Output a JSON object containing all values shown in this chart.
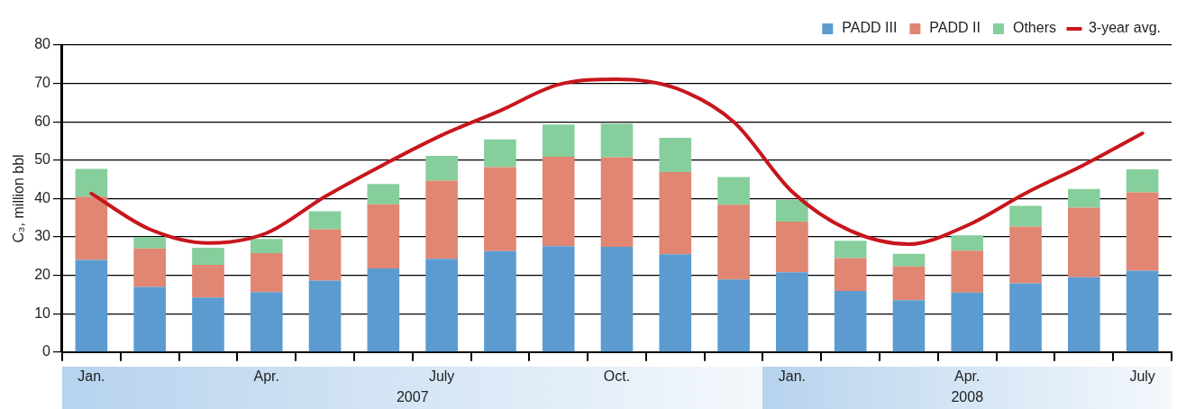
{
  "chart_data": {
    "type": "bar",
    "stacked": true,
    "ylabel": "C₃, million bbl",
    "categories": [
      "Jan.",
      null,
      null,
      "Apr.",
      null,
      null,
      "July",
      null,
      null,
      "Oct.",
      null,
      null,
      "Jan.",
      null,
      null,
      "Apr.",
      null,
      null,
      "July"
    ],
    "series": [
      {
        "name": "PADD III",
        "color": "#5b9bd0",
        "values": [
          24,
          17,
          14.2,
          15.6,
          18.6,
          21.8,
          24.3,
          26.3,
          27.6,
          27.4,
          25.5,
          18.9,
          20.8,
          15.9,
          13.5,
          15.5,
          17.9,
          19.5,
          21.2
        ]
      },
      {
        "name": "PADD II",
        "color": "#e08672",
        "values": [
          16.5,
          10,
          8.5,
          10.2,
          13.4,
          16.7,
          20.4,
          21.9,
          23.3,
          23.4,
          21.4,
          19.5,
          13.2,
          8.6,
          8.8,
          10.9,
          14.8,
          18.1,
          20.4
        ]
      },
      {
        "name": "Others",
        "color": "#86cf9c",
        "values": [
          7.2,
          3,
          4.5,
          3.7,
          4.7,
          5.3,
          6.4,
          7.2,
          8.4,
          8.7,
          8.9,
          7.2,
          5.6,
          4.5,
          3.3,
          4,
          5.4,
          4.9,
          6
        ]
      },
      {
        "name": "3-year avg.",
        "type": "line",
        "color": "#c8161d",
        "values": [
          41.3,
          32,
          28.4,
          31,
          40.5,
          48.8,
          56.5,
          62.9,
          69.7,
          71.1,
          68.8,
          60,
          41.8,
          31.6,
          28.1,
          33,
          41.4,
          48.8,
          57
        ]
      }
    ],
    "ylim": [
      0,
      80
    ],
    "yticks": [
      0,
      10,
      20,
      30,
      40,
      50,
      60,
      70,
      80
    ],
    "grid": "y",
    "legend": "top right",
    "marker": "none",
    "annotations": [
      "2007",
      "2008"
    ]
  }
}
